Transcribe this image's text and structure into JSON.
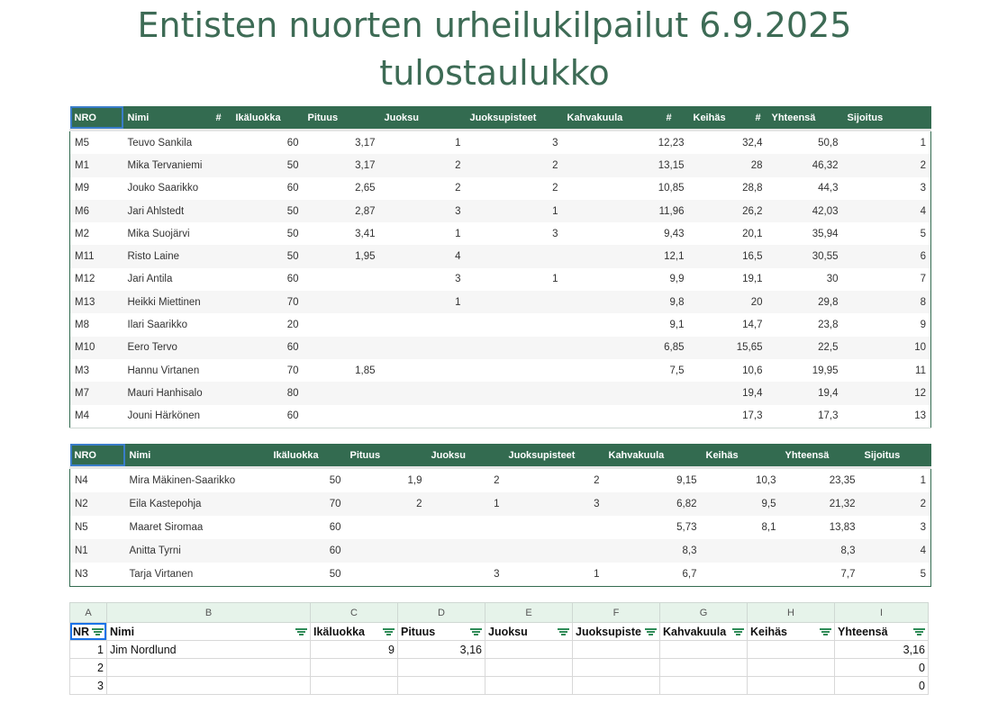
{
  "title_line1": "Entisten nuorten urheilukilpailut 6.9.2025",
  "title_line2": "tulostaulukko",
  "men": {
    "headers": [
      "NRO",
      "Nimi",
      "#",
      "Ikäluokka",
      "Pituus",
      "Juoksu",
      "Juoksupisteet",
      "Kahvakuula",
      "#",
      "Keihäs",
      "#",
      "Yhteensä",
      "Sijoitus"
    ],
    "rows": [
      [
        "M5",
        "Teuvo Sankila",
        "60",
        "3,17",
        "1",
        "3",
        "12,23",
        "32,4",
        "50,8",
        "1"
      ],
      [
        "M1",
        "Mika Tervaniemi",
        "50",
        "3,17",
        "2",
        "2",
        "13,15",
        "28",
        "46,32",
        "2"
      ],
      [
        "M9",
        "Jouko Saarikko",
        "60",
        "2,65",
        "2",
        "2",
        "10,85",
        "28,8",
        "44,3",
        "3"
      ],
      [
        "M6",
        "Jari Ahlstedt",
        "50",
        "2,87",
        "3",
        "1",
        "11,96",
        "26,2",
        "42,03",
        "4"
      ],
      [
        "M2",
        "Mika Suojärvi",
        "50",
        "3,41",
        "1",
        "3",
        "9,43",
        "20,1",
        "35,94",
        "5"
      ],
      [
        "M11",
        "Risto Laine",
        "50",
        "1,95",
        "4",
        "",
        "12,1",
        "16,5",
        "30,55",
        "6"
      ],
      [
        "M12",
        "Jari Antila",
        "60",
        "",
        "3",
        "1",
        "9,9",
        "19,1",
        "30",
        "7"
      ],
      [
        "M13",
        "Heikki Miettinen",
        "70",
        "",
        "1",
        "",
        "9,8",
        "20",
        "29,8",
        "8"
      ],
      [
        "M8",
        "Ilari Saarikko",
        "20",
        "",
        "",
        "",
        "9,1",
        "14,7",
        "23,8",
        "9"
      ],
      [
        "M10",
        "Eero Tervo",
        "60",
        "",
        "",
        "",
        "6,85",
        "15,65",
        "22,5",
        "10"
      ],
      [
        "M3",
        "Hannu Virtanen",
        "70",
        "1,85",
        "",
        "",
        "7,5",
        "10,6",
        "19,95",
        "11"
      ],
      [
        "M7",
        "Mauri Hanhisalo",
        "80",
        "",
        "",
        "",
        "",
        "19,4",
        "19,4",
        "12"
      ],
      [
        "M4",
        "Jouni Härkönen",
        "60",
        "",
        "",
        "",
        "",
        "17,3",
        "17,3",
        "13"
      ]
    ]
  },
  "women": {
    "headers": [
      "NRO",
      "Nimi",
      "Ikäluokka",
      "Pituus",
      "Juoksu",
      "Juoksupisteet",
      "Kahvakuula",
      "Keihäs",
      "Yhteensä",
      "Sijoitus"
    ],
    "rows": [
      [
        "N4",
        "Mira Mäkinen-Saarikko",
        "50",
        "1,9",
        "2",
        "2",
        "9,15",
        "10,3",
        "23,35",
        "1"
      ],
      [
        "N2",
        "Eila Kastepohja",
        "70",
        "2",
        "1",
        "3",
        "6,82",
        "9,5",
        "21,32",
        "2"
      ],
      [
        "N5",
        "Maaret Siromaa",
        "60",
        "",
        "",
        "",
        "5,73",
        "8,1",
        "13,83",
        "3"
      ],
      [
        "N1",
        "Anitta Tyrni",
        "60",
        "",
        "",
        "",
        "8,3",
        "",
        "8,3",
        "4"
      ],
      [
        "N3",
        "Tarja Virtanen",
        "50",
        "",
        "3",
        "1",
        "6,7",
        "",
        "7,7",
        "5"
      ]
    ]
  },
  "sheet": {
    "columns": [
      "A",
      "B",
      "C",
      "D",
      "E",
      "F",
      "G",
      "H",
      "I"
    ],
    "headers": [
      "NR",
      "Nimi",
      "Ikäluokka",
      "Pituus",
      "Juoksu",
      "Juoksupiste",
      "Kahvakuula",
      "Keihäs",
      "Yhteensä"
    ],
    "rows": [
      [
        "1",
        "Jim Nordlund",
        "9",
        "3,16",
        "",
        "",
        "",
        "",
        "3,16"
      ],
      [
        "2",
        "",
        "",
        "",
        "",
        "",
        "",
        "",
        "0"
      ],
      [
        "3",
        "",
        "",
        "",
        "",
        "",
        "",
        "",
        "0"
      ]
    ]
  }
}
